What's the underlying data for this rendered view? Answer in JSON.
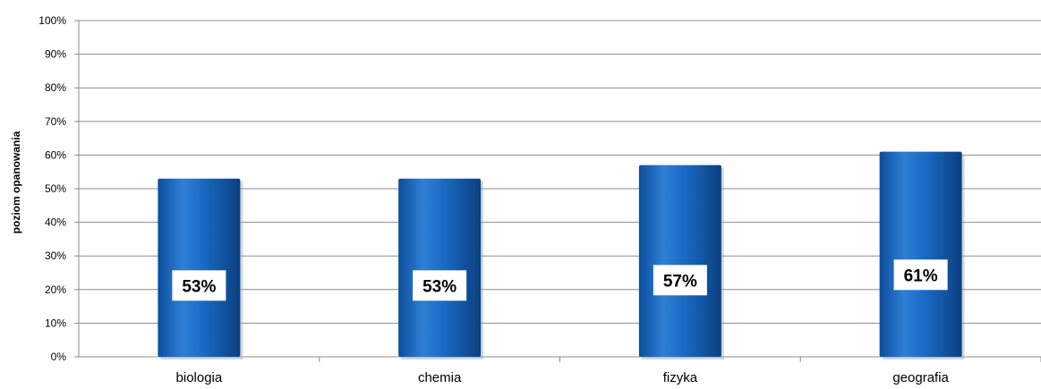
{
  "chart_data": {
    "type": "bar",
    "title": "",
    "xlabel": "",
    "ylabel": "poziom opanowania",
    "ylim": [
      0,
      100
    ],
    "yticks": [
      "0%",
      "10%",
      "20%",
      "30%",
      "40%",
      "50%",
      "60%",
      "70%",
      "80%",
      "90%",
      "100%"
    ],
    "categories": [
      "biologia",
      "chemia",
      "fizyka",
      "geografia"
    ],
    "values": [
      53,
      53,
      57,
      61
    ],
    "data_labels": [
      "53%",
      "53%",
      "57%",
      "61%"
    ],
    "grid": true,
    "legend": "none",
    "colors": {
      "bar": "#1565c0",
      "bar_highlight": "#3d8be0",
      "bar_shadow": "#0b3f80",
      "grid": "#8c8c8c",
      "axis": "#8c8c8c"
    }
  }
}
